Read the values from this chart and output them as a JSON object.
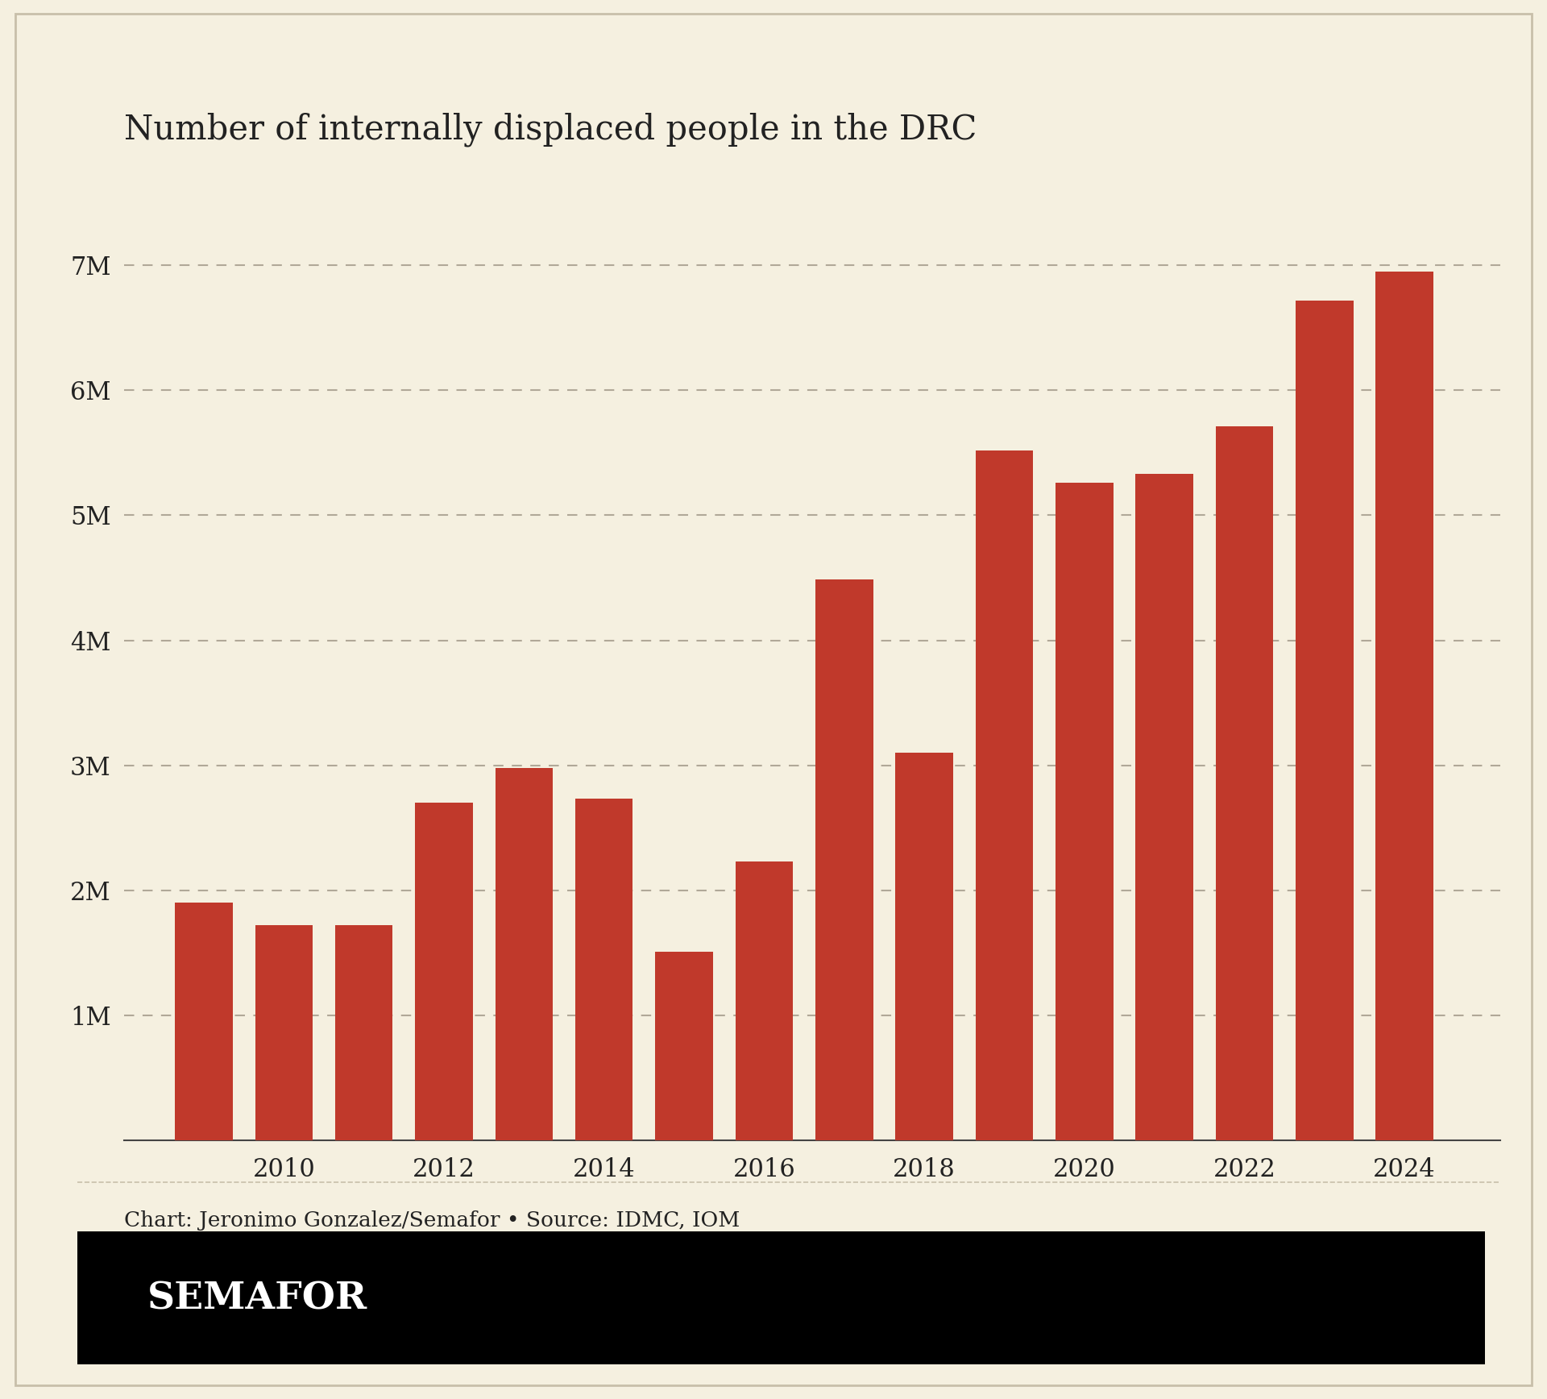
{
  "title": "Number of internally displaced people in the DRC",
  "years": [
    2009,
    2010,
    2011,
    2012,
    2013,
    2014,
    2015,
    2016,
    2017,
    2018,
    2019,
    2020,
    2021,
    2022,
    2023,
    2024
  ],
  "values": [
    1900000,
    1720000,
    1720000,
    2700000,
    2980000,
    2730000,
    1510000,
    2230000,
    4490000,
    3100000,
    5520000,
    5260000,
    5330000,
    5710000,
    6720000,
    6950000
  ],
  "bar_color": "#c0392b",
  "background_color": "#f5f0e0",
  "text_color": "#222222",
  "axis_color": "#444444",
  "grid_color": "#b0a898",
  "ytick_labels": [
    "1M",
    "2M",
    "3M",
    "4M",
    "5M",
    "6M",
    "7M"
  ],
  "ytick_values": [
    1000000,
    2000000,
    3000000,
    4000000,
    5000000,
    6000000,
    7000000
  ],
  "xtick_labels": [
    "2010",
    "2012",
    "2014",
    "2016",
    "2018",
    "2020",
    "2022",
    "2024"
  ],
  "xtick_values": [
    2010,
    2012,
    2014,
    2016,
    2018,
    2020,
    2022,
    2024
  ],
  "ylim": [
    0,
    7500000
  ],
  "source_text": "Chart: Jeronimo Gonzalez/Semafor • Source: IDMC, IOM",
  "semafor_label": "SEMAFOR",
  "title_fontsize": 30,
  "axis_fontsize": 22,
  "source_fontsize": 19,
  "semafor_fontsize": 34,
  "border_color": "#c8bfaa"
}
